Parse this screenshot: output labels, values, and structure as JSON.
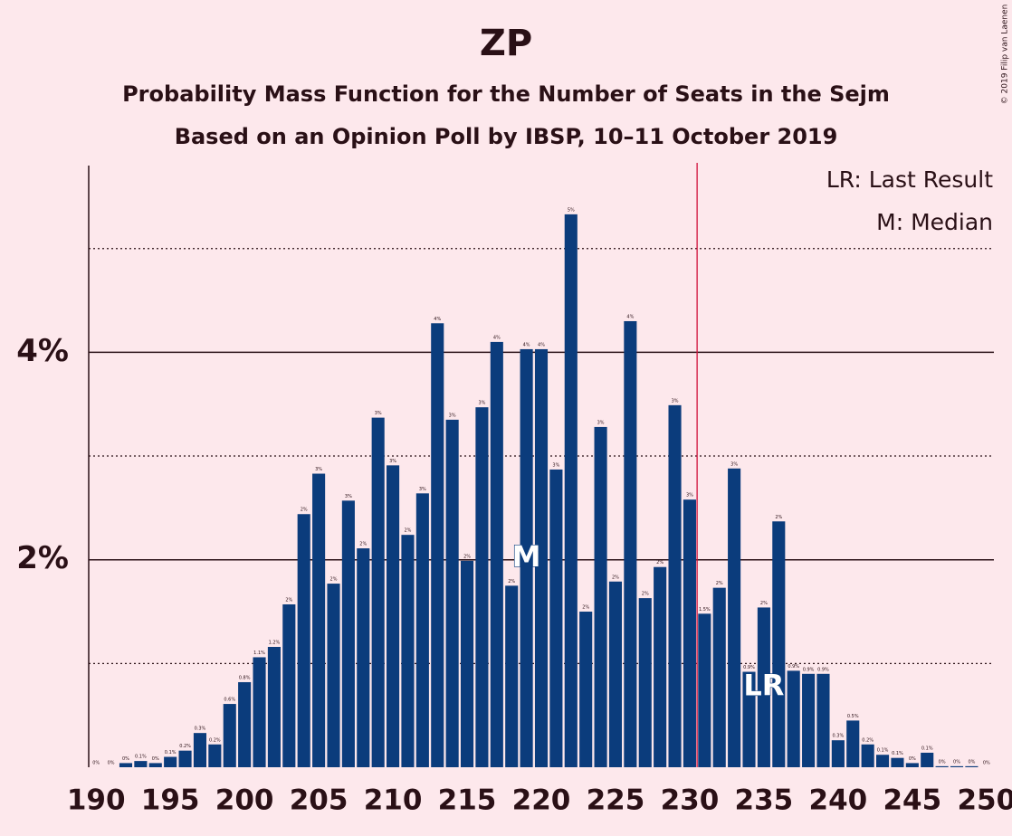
{
  "chart_data": {
    "type": "bar",
    "title": "ZP",
    "subtitle": "Probability Mass Function for the Number of Seats in the Sejm",
    "subtitle2": "Based on an Opinion Poll by IBSP, 10–11 October 2019",
    "copyright": "© 2019 Filip van Laenen",
    "legend": [
      "LR: Last Result",
      "M: Median"
    ],
    "color": "#0b3c7c",
    "threshold": {
      "value": 230.5,
      "color": "#d0103a"
    },
    "median": {
      "value": 219,
      "label": "M"
    },
    "last_result": {
      "value": 235,
      "label": "LR"
    },
    "x": [
      190,
      191,
      192,
      193,
      194,
      195,
      196,
      197,
      198,
      199,
      200,
      201,
      202,
      203,
      204,
      205,
      206,
      207,
      208,
      209,
      210,
      211,
      212,
      213,
      214,
      215,
      216,
      217,
      218,
      219,
      220,
      221,
      222,
      223,
      224,
      225,
      226,
      227,
      228,
      229,
      230,
      231,
      232,
      233,
      234,
      235,
      236,
      237,
      238,
      239,
      240,
      241,
      242,
      243,
      244,
      245,
      246,
      247,
      248,
      249,
      250
    ],
    "values": [
      0,
      0,
      0.04,
      0.06,
      0.04,
      0.1,
      0.16,
      0.33,
      0.22,
      0.61,
      0.82,
      1.06,
      1.16,
      1.57,
      2.44,
      2.83,
      1.77,
      2.57,
      2.11,
      3.37,
      2.91,
      2.24,
      2.64,
      4.28,
      3.35,
      1.99,
      3.47,
      4.1,
      1.75,
      4.03,
      4.03,
      2.87,
      5.33,
      1.5,
      3.28,
      1.79,
      4.3,
      1.63,
      1.93,
      3.49,
      2.58,
      1.48,
      1.73,
      2.88,
      0.92,
      1.54,
      2.37,
      0.93,
      0.9,
      0.9,
      0.26,
      0.45,
      0.22,
      0.12,
      0.09,
      0.04,
      0.14,
      0.01,
      0.01,
      0.01,
      0
    ],
    "value_labels": [
      "0%",
      "0%",
      "0%",
      "0.1%",
      "0%",
      "0.1%",
      "0.2%",
      "0.3%",
      "0.2%",
      "0.6%",
      "0.8%",
      "1.1%",
      "1.2%",
      "2%",
      "2%",
      "3%",
      "2%",
      "3%",
      "2%",
      "3%",
      "3%",
      "2%",
      "3%",
      "4%",
      "3%",
      "2%",
      "3%",
      "4%",
      "2%",
      "4%",
      "4%",
      "3%",
      "5%",
      "2%",
      "3%",
      "2%",
      "4%",
      "2%",
      "2%",
      "3%",
      "3%",
      "1.5%",
      "2%",
      "3%",
      "0.9%",
      "2%",
      "2%",
      "0.9%",
      "0.9%",
      "0.9%",
      "0.3%",
      "0.5%",
      "0.2%",
      "0.1%",
      "0.1%",
      "0%",
      "0.1%",
      "0%",
      "0%",
      "0%",
      "0%"
    ],
    "xlim": [
      189.5,
      250.5
    ],
    "xticks": [
      190,
      195,
      200,
      205,
      210,
      215,
      220,
      225,
      230,
      235,
      240,
      245,
      250
    ],
    "ylim": [
      0,
      5.8
    ],
    "yticks": [
      {
        "value": 2,
        "label": "2%"
      },
      {
        "value": 4,
        "label": "4%"
      }
    ],
    "minor_grid": [
      1,
      3,
      5
    ],
    "grid": true
  }
}
